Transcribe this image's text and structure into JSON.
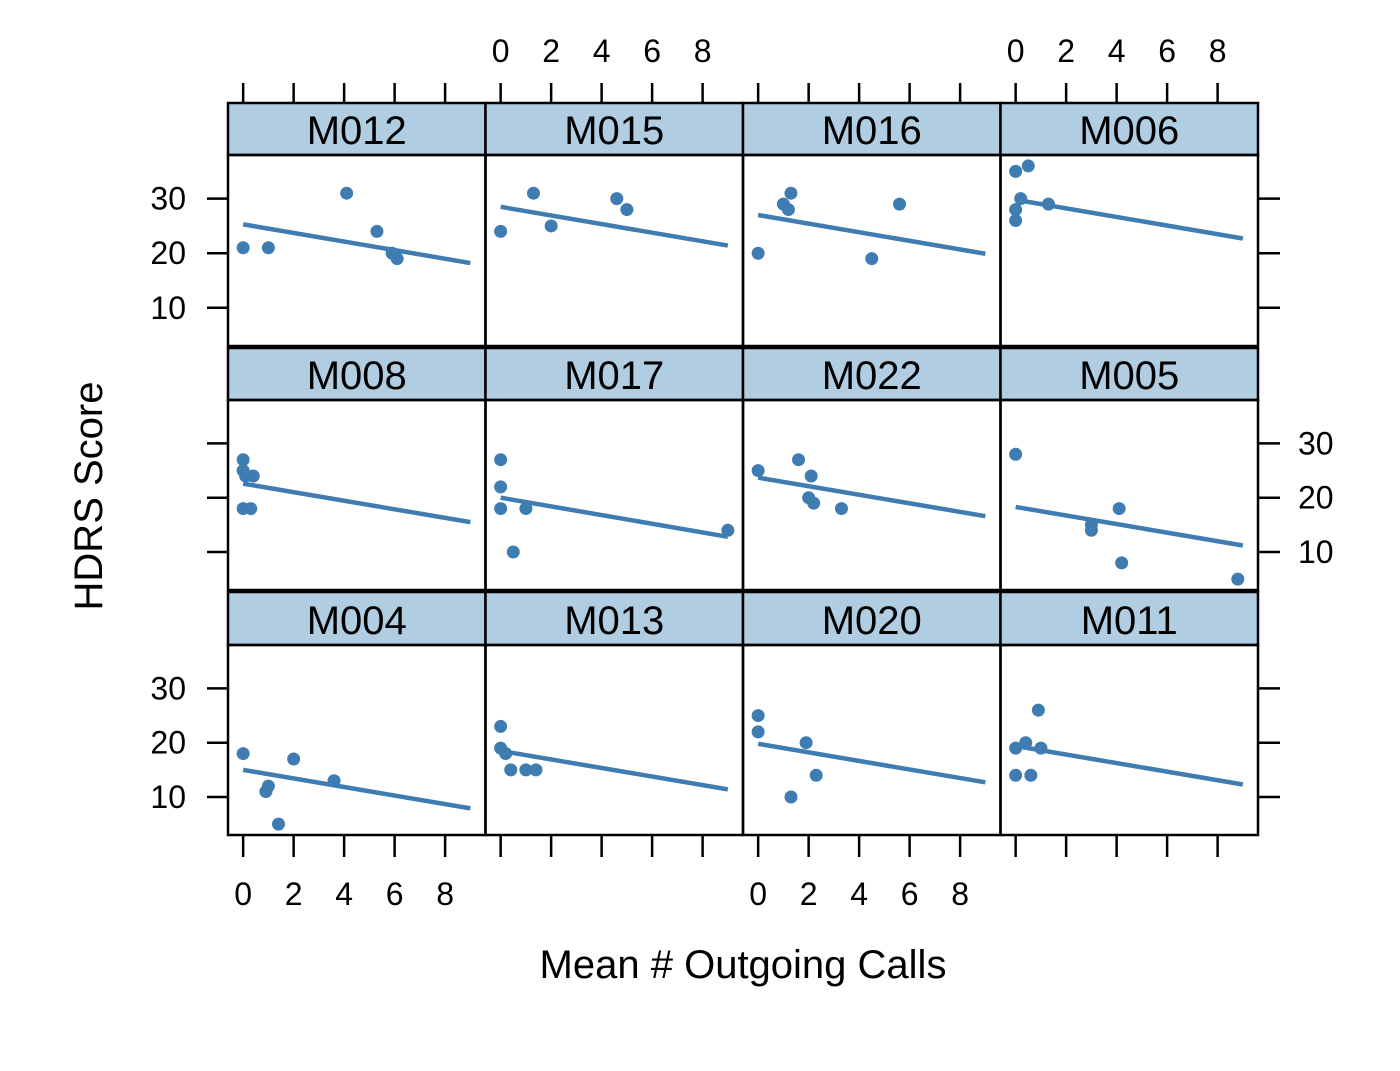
{
  "chart_data": {
    "type": "scatter",
    "layout": "lattice 4 columns x 3 rows, shared axes, alternating tick labels",
    "xlabel": "Mean # Outgoing Calls",
    "ylabel": "HDRS Score",
    "xlim": [
      -0.6,
      9.6
    ],
    "ylim": [
      3,
      38
    ],
    "x_ticks": [
      0,
      2,
      4,
      6,
      8
    ],
    "y_ticks": [
      10,
      20,
      30
    ],
    "x_tick_labels": [
      "0",
      "2",
      "4",
      "6",
      "8"
    ],
    "y_tick_labels": [
      "10",
      "20",
      "30"
    ],
    "colors": {
      "points": "#3f7cb2",
      "strip": "#b0cde2",
      "frame": "#000000"
    },
    "panels": [
      {
        "label": "M012",
        "points": [
          [
            0,
            21
          ],
          [
            1,
            21
          ],
          [
            4.1,
            31
          ],
          [
            5.3,
            24
          ],
          [
            5.9,
            20
          ],
          [
            6.1,
            19
          ]
        ],
        "fit": [
          [
            0,
            25.3
          ],
          [
            9.0,
            18.2
          ]
        ]
      },
      {
        "label": "M015",
        "points": [
          [
            0,
            24
          ],
          [
            1.3,
            31
          ],
          [
            2.0,
            25
          ],
          [
            4.6,
            30
          ],
          [
            5.0,
            28
          ]
        ],
        "fit": [
          [
            0,
            28.5
          ],
          [
            9.0,
            21.4
          ]
        ]
      },
      {
        "label": "M016",
        "points": [
          [
            0,
            20
          ],
          [
            1.0,
            29
          ],
          [
            1.2,
            28
          ],
          [
            1.3,
            31
          ],
          [
            4.5,
            19
          ],
          [
            5.6,
            29
          ]
        ],
        "fit": [
          [
            0,
            27.0
          ],
          [
            9.0,
            19.9
          ]
        ]
      },
      {
        "label": "M006",
        "points": [
          [
            0,
            35
          ],
          [
            0.5,
            36
          ],
          [
            0,
            28
          ],
          [
            0,
            26
          ],
          [
            0.2,
            30
          ],
          [
            1.3,
            29
          ]
        ],
        "fit": [
          [
            0,
            29.8
          ],
          [
            9.0,
            22.7
          ]
        ]
      },
      {
        "label": "M008",
        "points": [
          [
            0,
            27
          ],
          [
            0,
            25
          ],
          [
            0.1,
            24
          ],
          [
            0.4,
            24
          ],
          [
            0,
            18
          ],
          [
            0.3,
            18
          ]
        ],
        "fit": [
          [
            0,
            22.6
          ],
          [
            9.0,
            15.5
          ]
        ]
      },
      {
        "label": "M017",
        "points": [
          [
            0,
            27
          ],
          [
            0,
            22
          ],
          [
            0,
            18
          ],
          [
            1.0,
            18
          ],
          [
            0.5,
            10
          ],
          [
            9.0,
            14
          ]
        ],
        "fit": [
          [
            0,
            20.0
          ],
          [
            9.0,
            12.8
          ]
        ]
      },
      {
        "label": "M022",
        "points": [
          [
            0,
            25
          ],
          [
            1.6,
            27
          ],
          [
            2.1,
            24
          ],
          [
            2.0,
            20
          ],
          [
            2.2,
            19
          ],
          [
            3.3,
            18
          ]
        ],
        "fit": [
          [
            0,
            23.7
          ],
          [
            9.0,
            16.6
          ]
        ]
      },
      {
        "label": "M005",
        "points": [
          [
            0,
            28
          ],
          [
            3.0,
            15
          ],
          [
            3.0,
            14
          ],
          [
            4.1,
            18
          ],
          [
            4.2,
            8
          ],
          [
            8.8,
            5
          ]
        ],
        "fit": [
          [
            0,
            18.3
          ],
          [
            9.0,
            11.2
          ]
        ]
      },
      {
        "label": "M004",
        "points": [
          [
            0,
            18
          ],
          [
            0.9,
            11
          ],
          [
            1.0,
            12
          ],
          [
            1.4,
            5
          ],
          [
            2.0,
            17
          ],
          [
            3.6,
            13
          ]
        ],
        "fit": [
          [
            0,
            15.0
          ],
          [
            9.0,
            7.9
          ]
        ]
      },
      {
        "label": "M013",
        "points": [
          [
            0,
            23
          ],
          [
            0,
            19
          ],
          [
            0.2,
            18
          ],
          [
            0.4,
            15
          ],
          [
            1.0,
            15
          ],
          [
            1.4,
            15
          ]
        ],
        "fit": [
          [
            0,
            18.5
          ],
          [
            9.0,
            11.4
          ]
        ]
      },
      {
        "label": "M020",
        "points": [
          [
            0,
            25
          ],
          [
            0,
            22
          ],
          [
            1.3,
            10
          ],
          [
            1.9,
            20
          ],
          [
            2.3,
            14
          ]
        ],
        "fit": [
          [
            0,
            19.8
          ],
          [
            9.0,
            12.7
          ]
        ]
      },
      {
        "label": "M011",
        "points": [
          [
            0,
            19
          ],
          [
            0,
            14
          ],
          [
            0.4,
            20
          ],
          [
            0.6,
            14
          ],
          [
            0.9,
            26
          ],
          [
            1.0,
            19
          ]
        ],
        "fit": [
          [
            0,
            19.4
          ],
          [
            9.0,
            12.3
          ]
        ]
      }
    ]
  }
}
